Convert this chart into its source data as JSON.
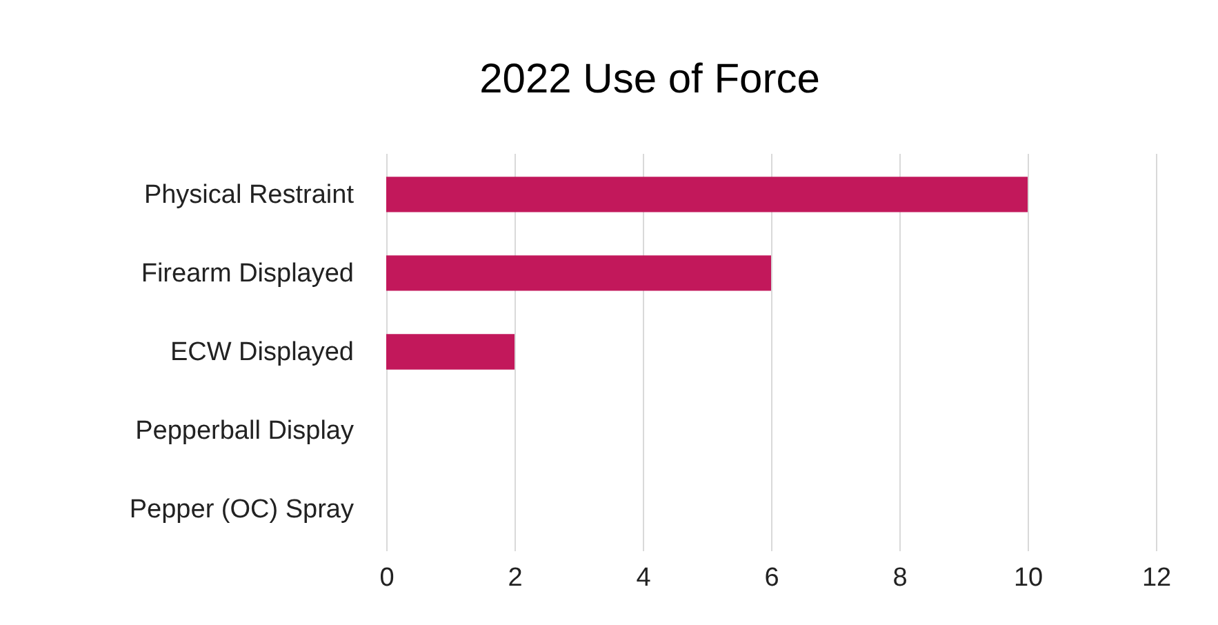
{
  "chart_data": {
    "type": "bar",
    "title": "2022 Use of Force",
    "orientation": "horizontal",
    "categories": [
      "Physical Restraint",
      "Firearm Displayed",
      "ECW Displayed",
      "Pepperball Display",
      "Pepper (OC) Spray"
    ],
    "values": [
      10,
      6,
      2,
      0,
      0
    ],
    "color": "#c2185b",
    "xlim": [
      0,
      12
    ],
    "xticks": [
      0,
      2,
      4,
      6,
      8,
      10,
      12
    ],
    "grid": "x"
  }
}
